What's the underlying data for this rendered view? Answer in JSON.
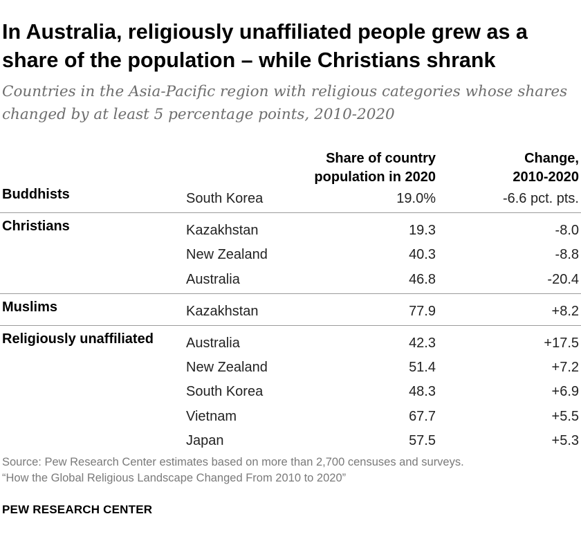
{
  "title": "In Australia, religiously unaffiliated people grew as a share of the population – while Christians shrank",
  "subtitle": "Countries in the Asia-Pacific region with religious categories whose shares changed by at least 5 percentage points, 2010-2020",
  "chart_data": {
    "type": "table",
    "columns": [
      {
        "line1": "Share of country",
        "line2": "population in 2020"
      },
      {
        "line1": "Change,",
        "line2": "2010-2020"
      }
    ],
    "groups": [
      {
        "label": "Buddhists",
        "rows": [
          {
            "country": "South Korea",
            "share": "19.0%",
            "change": "-6.6 pct. pts.",
            "share_value": 19.0,
            "change_value": -6.6
          }
        ]
      },
      {
        "label": "Christians",
        "rows": [
          {
            "country": "Kazakhstan",
            "share": "19.3",
            "change": "-8.0",
            "share_value": 19.3,
            "change_value": -8.0
          },
          {
            "country": "New Zealand",
            "share": "40.3",
            "change": "-8.8",
            "share_value": 40.3,
            "change_value": -8.8
          },
          {
            "country": "Australia",
            "share": "46.8",
            "change": "-20.4",
            "share_value": 46.8,
            "change_value": -20.4
          }
        ]
      },
      {
        "label": "Muslims",
        "rows": [
          {
            "country": "Kazakhstan",
            "share": "77.9",
            "change": "+8.2",
            "share_value": 77.9,
            "change_value": 8.2
          }
        ]
      },
      {
        "label": "Religiously unaffiliated",
        "rows": [
          {
            "country": "Australia",
            "share": "42.3",
            "change": "+17.5",
            "share_value": 42.3,
            "change_value": 17.5
          },
          {
            "country": "New Zealand",
            "share": "51.4",
            "change": "+7.2",
            "share_value": 51.4,
            "change_value": 7.2
          },
          {
            "country": "South Korea",
            "share": "48.3",
            "change": "+6.9",
            "share_value": 48.3,
            "change_value": 6.9
          },
          {
            "country": "Vietnam",
            "share": "67.7",
            "change": "+5.5",
            "share_value": 67.7,
            "change_value": 5.5
          },
          {
            "country": "Japan",
            "share": "57.5",
            "change": "+5.3",
            "share_value": 57.5,
            "change_value": 5.3
          }
        ]
      }
    ]
  },
  "source": {
    "line1": "Source: Pew Research Center estimates based on more than 2,700 censuses and surveys.",
    "line2": "“How the Global Religious Landscape Changed From 2010 to 2020”"
  },
  "brand": "PEW RESEARCH CENTER",
  "colors": {
    "title": "#000000",
    "subtitle": "#6d6d6d",
    "source": "#7a7a7a",
    "divider": "#9a9a9a"
  }
}
